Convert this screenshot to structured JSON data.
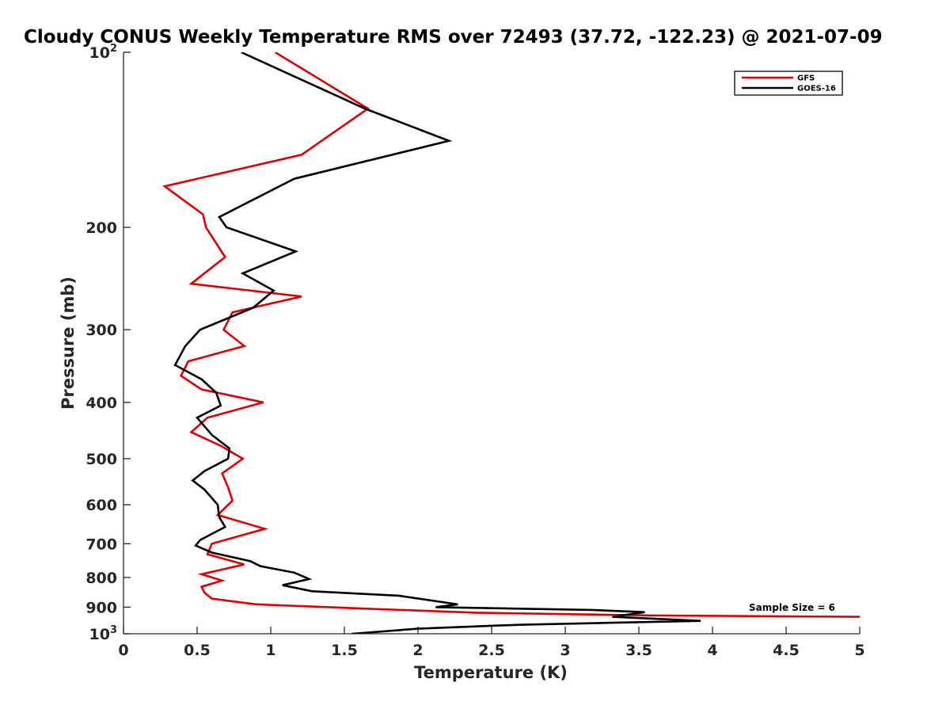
{
  "chart_data": {
    "type": "line",
    "title": "Cloudy CONUS Weekly Temperature RMS over 72493 (37.72, -122.23) @ 2021-07-09",
    "xlabel": "Temperature (K)",
    "ylabel": "Pressure (mb)",
    "xlim": [
      0,
      5
    ],
    "ylim": [
      100,
      1000
    ],
    "y_scale": "log",
    "y_reversed": true,
    "grid": false,
    "legend_position": "top-right",
    "x_ticks": [
      "0",
      "0.5",
      "1",
      "1.5",
      "2",
      "2.5",
      "3",
      "3.5",
      "4",
      "4.5",
      "5"
    ],
    "y_ticks": [
      {
        "value": 100,
        "base": "10",
        "exp": "2"
      },
      {
        "value": 200,
        "label": "200"
      },
      {
        "value": 300,
        "label": "300"
      },
      {
        "value": 400,
        "label": "400"
      },
      {
        "value": 500,
        "label": "500"
      },
      {
        "value": 600,
        "label": "600"
      },
      {
        "value": 700,
        "label": "700"
      },
      {
        "value": 800,
        "label": "800"
      },
      {
        "value": 900,
        "label": "900"
      },
      {
        "value": 1000,
        "base": "10",
        "exp": "3"
      }
    ],
    "annotation": "Sample Size = 6",
    "series": [
      {
        "name": "GFS",
        "color": "#e00000",
        "points": [
          [
            1.03,
            100
          ],
          [
            1.66,
            125
          ],
          [
            1.21,
            150
          ],
          [
            0.28,
            170
          ],
          [
            0.54,
            190
          ],
          [
            0.56,
            200
          ],
          [
            0.69,
            225
          ],
          [
            0.46,
            250
          ],
          [
            1.21,
            263
          ],
          [
            0.74,
            280
          ],
          [
            0.68,
            300
          ],
          [
            0.82,
            320
          ],
          [
            0.44,
            340
          ],
          [
            0.39,
            360
          ],
          [
            0.53,
            380
          ],
          [
            0.95,
            400
          ],
          [
            0.57,
            425
          ],
          [
            0.46,
            450
          ],
          [
            0.66,
            475
          ],
          [
            0.81,
            500
          ],
          [
            0.67,
            530
          ],
          [
            0.71,
            560
          ],
          [
            0.74,
            590
          ],
          [
            0.64,
            625
          ],
          [
            0.96,
            660
          ],
          [
            0.6,
            700
          ],
          [
            0.57,
            730
          ],
          [
            0.82,
            760
          ],
          [
            0.53,
            790
          ],
          [
            0.67,
            810
          ],
          [
            0.53,
            830
          ],
          [
            0.55,
            850
          ],
          [
            0.6,
            870
          ],
          [
            0.9,
            890
          ],
          [
            1.63,
            905
          ],
          [
            2.4,
            920
          ],
          [
            3.59,
            930
          ],
          [
            5.0,
            935
          ]
        ]
      },
      {
        "name": "GOES-16",
        "color": "#000000",
        "points": [
          [
            0.8,
            100
          ],
          [
            1.64,
            125
          ],
          [
            2.21,
            142
          ],
          [
            1.16,
            165
          ],
          [
            0.65,
            192
          ],
          [
            0.7,
            200
          ],
          [
            1.17,
            220
          ],
          [
            0.81,
            240
          ],
          [
            1.02,
            257
          ],
          [
            0.88,
            275
          ],
          [
            0.52,
            300
          ],
          [
            0.42,
            320
          ],
          [
            0.35,
            345
          ],
          [
            0.53,
            365
          ],
          [
            0.63,
            385
          ],
          [
            0.66,
            405
          ],
          [
            0.5,
            425
          ],
          [
            0.6,
            455
          ],
          [
            0.72,
            480
          ],
          [
            0.71,
            500
          ],
          [
            0.55,
            525
          ],
          [
            0.47,
            545
          ],
          [
            0.55,
            565
          ],
          [
            0.64,
            600
          ],
          [
            0.65,
            630
          ],
          [
            0.69,
            655
          ],
          [
            0.52,
            690
          ],
          [
            0.49,
            705
          ],
          [
            0.6,
            725
          ],
          [
            0.86,
            750
          ],
          [
            0.93,
            765
          ],
          [
            1.16,
            785
          ],
          [
            1.26,
            805
          ],
          [
            1.08,
            825
          ],
          [
            1.28,
            845
          ],
          [
            1.87,
            860
          ],
          [
            2.27,
            890
          ],
          [
            2.12,
            900
          ],
          [
            3.18,
            910
          ],
          [
            3.54,
            918
          ],
          [
            3.45,
            925
          ],
          [
            3.32,
            935
          ],
          [
            3.92,
            950
          ],
          [
            2.68,
            965
          ],
          [
            2.0,
            980
          ],
          [
            1.55,
            1000
          ]
        ]
      }
    ]
  }
}
